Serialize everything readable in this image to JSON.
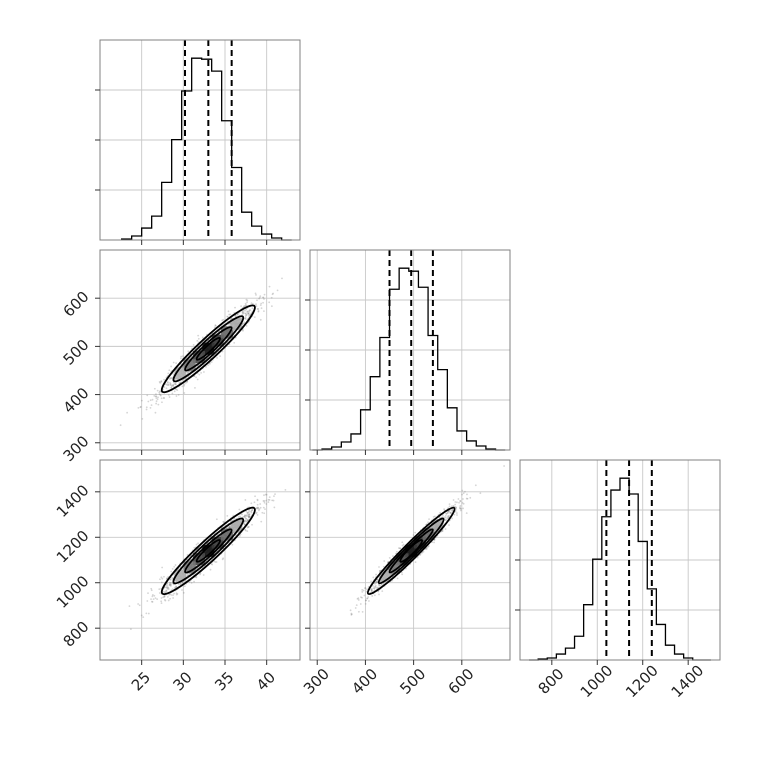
{
  "chart_data": [
    {
      "type": "histogram",
      "panel": "theta0",
      "xlim": [
        20,
        44
      ],
      "bins": [
        22.6,
        23.8,
        25.0,
        26.2,
        27.4,
        28.6,
        29.8,
        31.0,
        32.2,
        33.4,
        34.6,
        35.8,
        37.0,
        38.2,
        39.4,
        40.6,
        41.8,
        43.0
      ],
      "counts": [
        1,
        4,
        12,
        24,
        58,
        101,
        150,
        183,
        182,
        170,
        120,
        73,
        28,
        14,
        6,
        2,
        0
      ],
      "quantiles": [
        30.2,
        33.0,
        35.8
      ],
      "grid": true
    },
    {
      "type": "scatter",
      "panel": "theta0-theta1",
      "xlim": [
        20,
        44
      ],
      "ylim": [
        285,
        700
      ],
      "center": [
        33.0,
        495
      ],
      "sd": [
        2.8,
        45
      ],
      "corr": 0.95,
      "contour_levels": [
        0.5,
        1.0,
        1.5,
        2.0
      ],
      "y_ticks": [
        300,
        400,
        500,
        600
      ],
      "grid": true
    },
    {
      "type": "histogram",
      "panel": "theta1",
      "xlim": [
        285,
        700
      ],
      "bins": [
        290,
        310,
        330,
        350,
        370,
        390,
        410,
        430,
        450,
        470,
        490,
        510,
        530,
        550,
        570,
        590,
        610,
        630,
        650,
        670,
        690
      ],
      "counts": [
        0,
        1,
        3,
        8,
        16,
        40,
        73,
        112,
        160,
        181,
        178,
        162,
        114,
        80,
        42,
        19,
        9,
        4,
        1,
        0
      ],
      "quantiles": [
        450,
        495,
        540
      ],
      "grid": true
    },
    {
      "type": "scatter",
      "panel": "theta0-theta2",
      "xlim": [
        20,
        44
      ],
      "ylim": [
        660,
        1540
      ],
      "center": [
        33.0,
        1140
      ],
      "sd": [
        2.8,
        95
      ],
      "corr": 0.95,
      "contour_levels": [
        0.5,
        1.0,
        1.5,
        2.0
      ],
      "y_ticks": [
        800,
        1000,
        1200,
        1400
      ],
      "x_ticks": [
        25,
        30,
        35,
        40
      ],
      "grid": true
    },
    {
      "type": "scatter",
      "panel": "theta1-theta2",
      "xlim": [
        285,
        700
      ],
      "ylim": [
        660,
        1540
      ],
      "center": [
        495,
        1140
      ],
      "sd": [
        45,
        95
      ],
      "corr": 0.97,
      "contour_levels": [
        0.5,
        1.0,
        1.5,
        2.0
      ],
      "x_ticks": [
        300,
        400,
        500,
        600
      ],
      "grid": true
    },
    {
      "type": "histogram",
      "panel": "theta2",
      "xlim": [
        660,
        1540
      ],
      "bins": [
        700,
        740,
        780,
        820,
        860,
        900,
        940,
        980,
        1020,
        1060,
        1100,
        1140,
        1180,
        1220,
        1260,
        1300,
        1340,
        1380,
        1420,
        1460,
        1500
      ],
      "counts": [
        0,
        1,
        2,
        6,
        12,
        24,
        56,
        102,
        145,
        172,
        184,
        168,
        120,
        72,
        36,
        15,
        6,
        2,
        0,
        0
      ],
      "quantiles": [
        1040,
        1140,
        1240
      ],
      "x_ticks": [
        800,
        1000,
        1200,
        1400
      ],
      "grid": true
    }
  ]
}
